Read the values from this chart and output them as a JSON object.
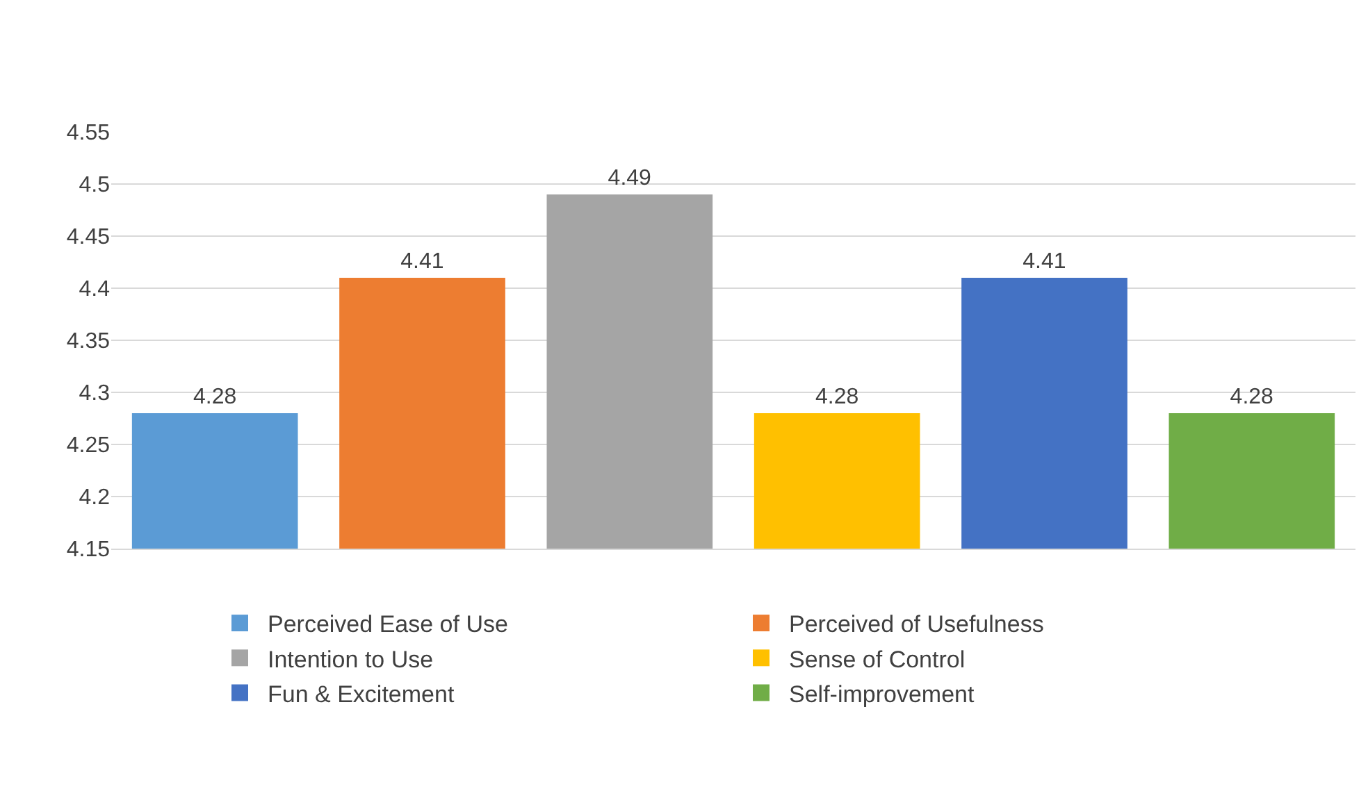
{
  "chart_data": {
    "type": "bar",
    "categories": [
      null,
      null,
      null,
      null,
      null,
      null
    ],
    "series": [
      {
        "name": "Perceived Ease of Use",
        "color": "#5b9bd5",
        "values": [
          4.28,
          null,
          null,
          null,
          null,
          null
        ]
      },
      {
        "name": "Perceived of Usefulness",
        "color": "#ed7d31",
        "values": [
          null,
          4.41,
          null,
          null,
          null,
          null
        ]
      },
      {
        "name": "Intention to Use",
        "color": "#a5a5a5",
        "values": [
          null,
          null,
          4.49,
          null,
          null,
          null
        ]
      },
      {
        "name": "Sense of Control",
        "color": "#ffc000",
        "values": [
          null,
          null,
          null,
          4.28,
          null,
          null
        ]
      },
      {
        "name": "Fun & Excitement",
        "color": "#4472c4",
        "values": [
          null,
          null,
          null,
          null,
          4.41,
          null
        ]
      },
      {
        "name": "Self-improvement",
        "color": "#70ad47",
        "values": [
          null,
          null,
          null,
          null,
          null,
          4.28
        ]
      }
    ],
    "ylim": [
      4.15,
      4.55
    ],
    "yticks": [
      4.15,
      4.2,
      4.25,
      4.3,
      4.35,
      4.4,
      4.45,
      4.5,
      4.55
    ],
    "grid": "y",
    "legend": "bottom",
    "data_labels": true
  }
}
